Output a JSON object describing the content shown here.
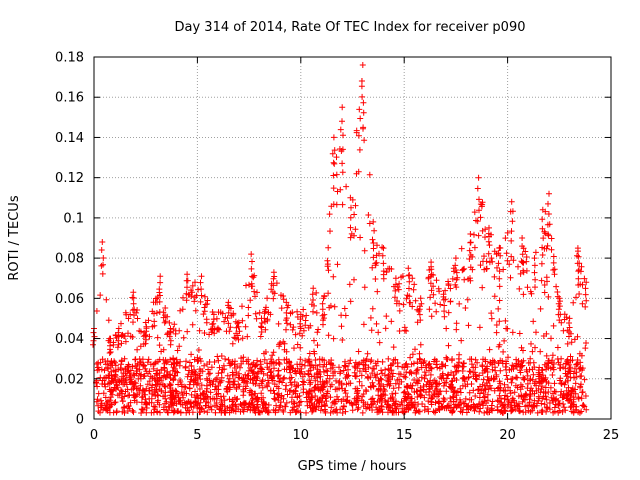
{
  "chart_data": {
    "type": "scatter",
    "title": "Day 314 of 2014, Rate Of TEC Index for receiver p090",
    "xlabel": "GPS time / hours",
    "ylabel": "ROTI / TECUs",
    "xlim": [
      0,
      25
    ],
    "ylim": [
      0,
      0.18
    ],
    "xticks": [
      0,
      5,
      10,
      15,
      20,
      25
    ],
    "yticks": [
      0,
      0.02,
      0.04,
      0.06,
      0.08,
      0.1,
      0.12,
      0.14,
      0.16,
      0.18
    ],
    "xtick_labels": [
      "0",
      "5",
      "10",
      "15",
      "20",
      "25"
    ],
    "ytick_labels": [
      "0",
      "0.02",
      "0.04",
      "0.06",
      "0.08",
      "0.1",
      "0.12",
      "0.14",
      "0.16",
      "0.18"
    ],
    "grid": true,
    "marker": "+",
    "color": "#ff0000",
    "x_extent": [
      0.1,
      23.8
    ],
    "dense_band": [
      0.003,
      0.03
    ],
    "envelope": [
      {
        "x": 0.0,
        "y": 0.045
      },
      {
        "x": 0.4,
        "y": 0.088
      },
      {
        "x": 0.8,
        "y": 0.04
      },
      {
        "x": 1.2,
        "y": 0.045
      },
      {
        "x": 1.9,
        "y": 0.063
      },
      {
        "x": 2.5,
        "y": 0.048
      },
      {
        "x": 3.2,
        "y": 0.071
      },
      {
        "x": 3.7,
        "y": 0.045
      },
      {
        "x": 4.5,
        "y": 0.072
      },
      {
        "x": 5.2,
        "y": 0.071
      },
      {
        "x": 5.8,
        "y": 0.052
      },
      {
        "x": 6.5,
        "y": 0.058
      },
      {
        "x": 7.0,
        "y": 0.048
      },
      {
        "x": 7.6,
        "y": 0.082
      },
      {
        "x": 8.1,
        "y": 0.05
      },
      {
        "x": 8.7,
        "y": 0.073
      },
      {
        "x": 9.3,
        "y": 0.058
      },
      {
        "x": 10.0,
        "y": 0.052
      },
      {
        "x": 10.6,
        "y": 0.065
      },
      {
        "x": 11.1,
        "y": 0.06
      },
      {
        "x": 11.6,
        "y": 0.14
      },
      {
        "x": 12.0,
        "y": 0.155
      },
      {
        "x": 12.4,
        "y": 0.11
      },
      {
        "x": 13.0,
        "y": 0.176
      },
      {
        "x": 13.5,
        "y": 0.098
      },
      {
        "x": 14.0,
        "y": 0.085
      },
      {
        "x": 14.6,
        "y": 0.07
      },
      {
        "x": 15.2,
        "y": 0.075
      },
      {
        "x": 15.8,
        "y": 0.06
      },
      {
        "x": 16.3,
        "y": 0.078
      },
      {
        "x": 16.9,
        "y": 0.062
      },
      {
        "x": 17.5,
        "y": 0.08
      },
      {
        "x": 18.2,
        "y": 0.092
      },
      {
        "x": 18.6,
        "y": 0.12
      },
      {
        "x": 19.1,
        "y": 0.095
      },
      {
        "x": 19.6,
        "y": 0.085
      },
      {
        "x": 20.2,
        "y": 0.108
      },
      {
        "x": 20.7,
        "y": 0.09
      },
      {
        "x": 21.3,
        "y": 0.08
      },
      {
        "x": 21.7,
        "y": 0.104
      },
      {
        "x": 22.0,
        "y": 0.112
      },
      {
        "x": 22.5,
        "y": 0.06
      },
      {
        "x": 23.0,
        "y": 0.05
      },
      {
        "x": 23.4,
        "y": 0.085
      },
      {
        "x": 23.8,
        "y": 0.068
      }
    ]
  }
}
